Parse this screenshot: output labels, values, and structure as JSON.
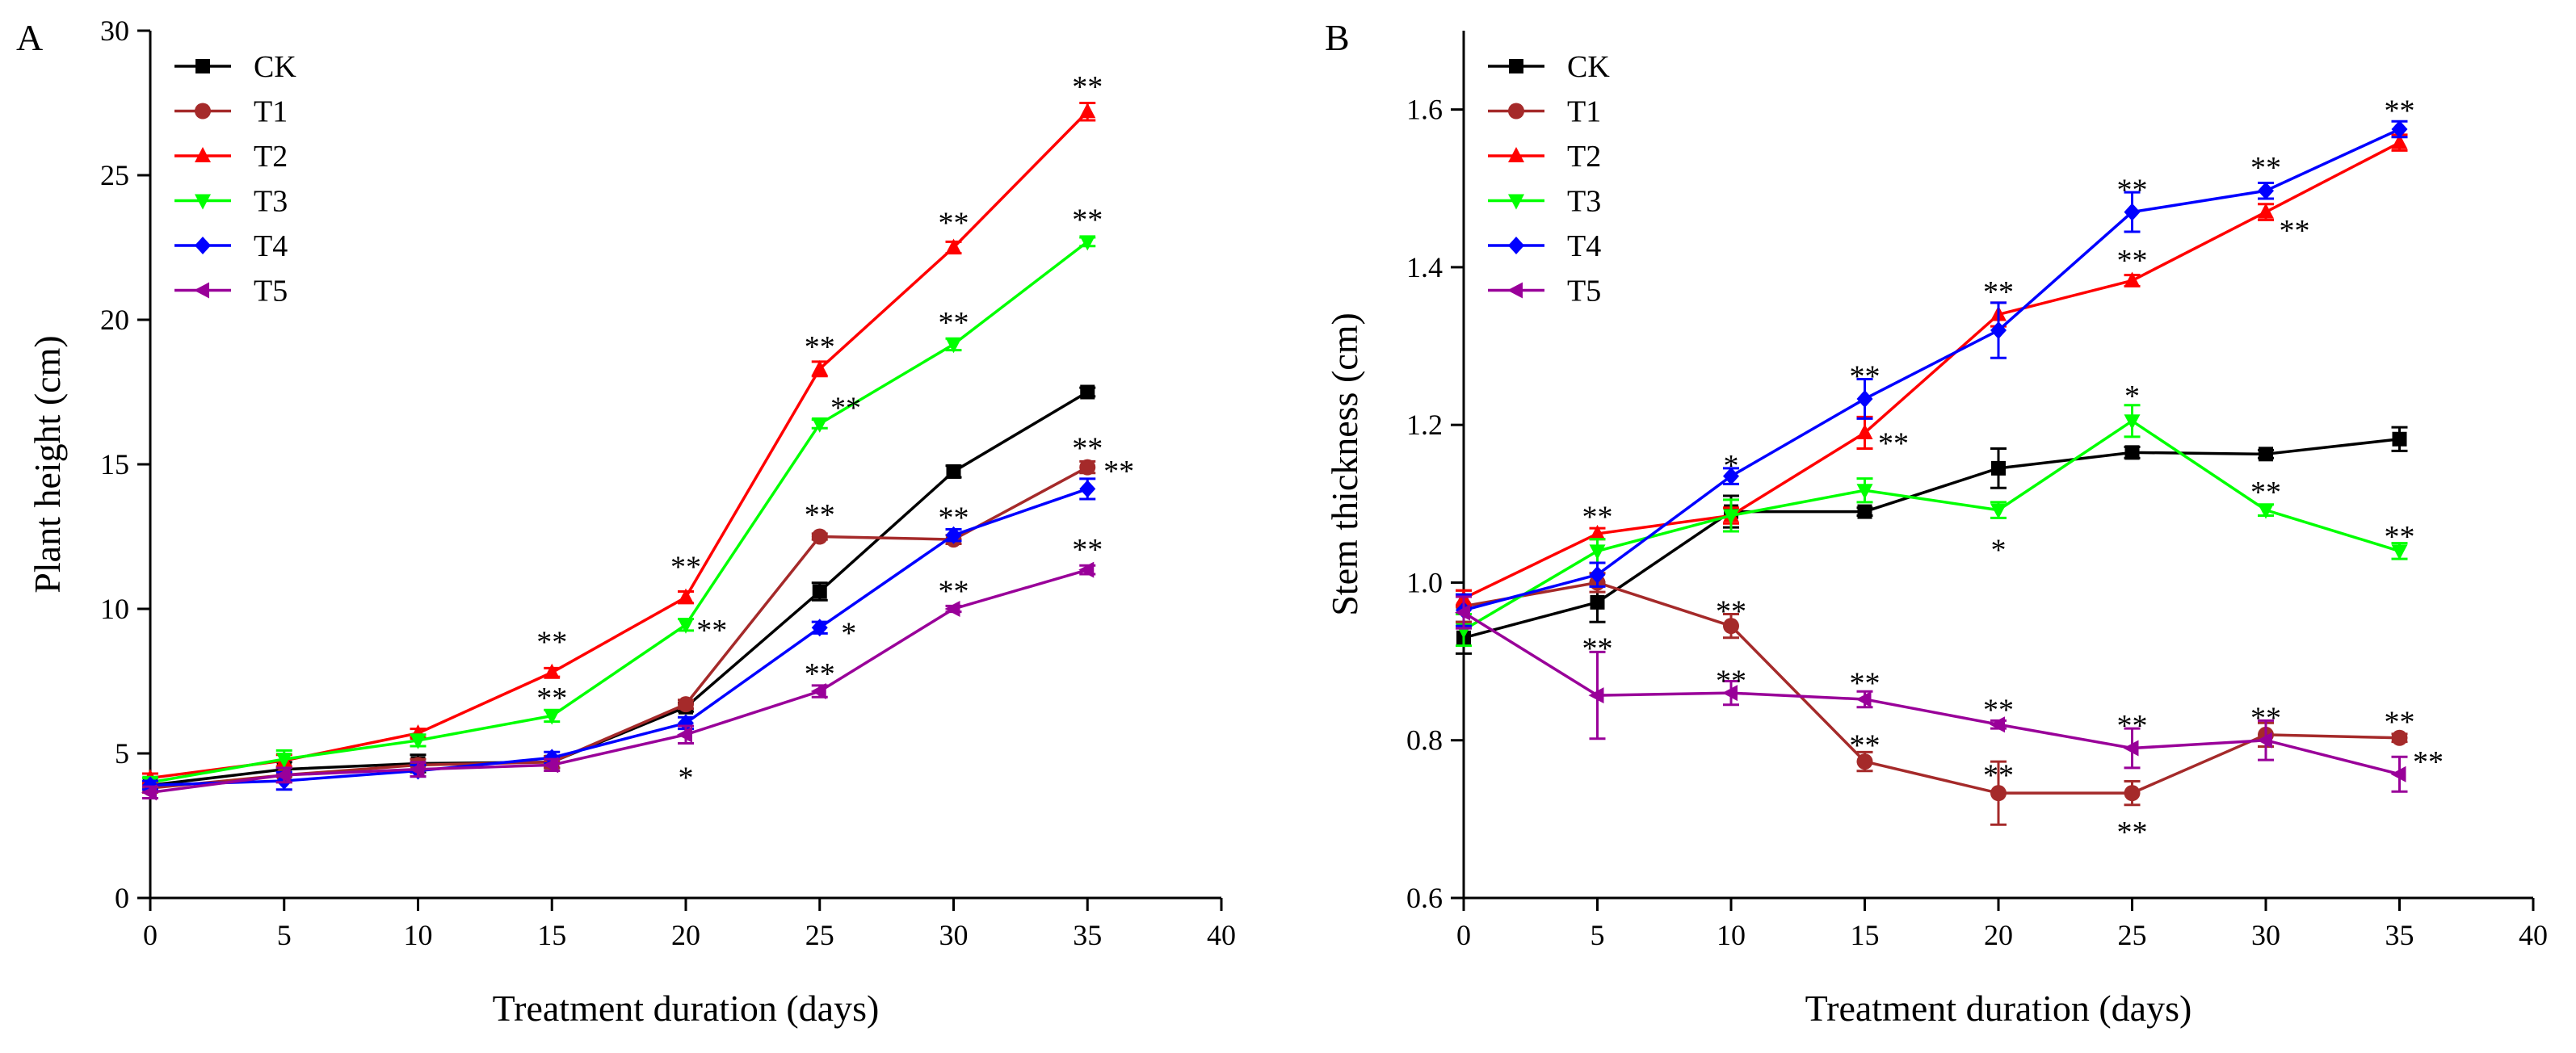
{
  "chart_data": [
    {
      "type": "line",
      "panel_label": "A",
      "xlabel": "Treatment duration (days)",
      "ylabel": "Plant height (cm)",
      "xlim": [
        0,
        40
      ],
      "ylim": [
        0,
        30
      ],
      "xticks": [
        0,
        5,
        10,
        15,
        20,
        25,
        30,
        35,
        40
      ],
      "yticks": [
        0,
        5,
        10,
        15,
        20,
        25,
        30
      ],
      "x": [
        0,
        5,
        10,
        15,
        20,
        25,
        30,
        35
      ],
      "legend_position": "top-left",
      "series": [
        {
          "name": "CK",
          "color": "#000000",
          "marker": "square",
          "values": [
            3.9,
            4.45,
            4.65,
            4.7,
            6.6,
            10.6,
            14.75,
            17.5
          ],
          "errors": [
            0.15,
            0.25,
            0.3,
            0.2,
            0.15,
            0.3,
            0.2,
            0.15
          ]
        },
        {
          "name": "T1",
          "color": "#A52A2A",
          "marker": "circle",
          "values": [
            3.8,
            4.25,
            4.6,
            4.7,
            6.7,
            12.5,
            12.4,
            14.9
          ],
          "errors": [
            0.15,
            0.25,
            0.2,
            0.2,
            0.15,
            0.1,
            0.15,
            0.2
          ]
        },
        {
          "name": "T2",
          "color": "#FF0000",
          "marker": "triangle-up",
          "values": [
            4.15,
            4.75,
            5.7,
            7.8,
            10.4,
            18.3,
            22.5,
            27.2
          ],
          "errors": [
            0.15,
            0.2,
            0.15,
            0.15,
            0.2,
            0.25,
            0.2,
            0.3
          ]
        },
        {
          "name": "T3",
          "color": "#00FF00",
          "marker": "triangle-down",
          "values": [
            4.0,
            4.8,
            5.45,
            6.3,
            9.45,
            16.4,
            19.15,
            22.7
          ],
          "errors": [
            0.15,
            0.3,
            0.2,
            0.2,
            0.2,
            0.15,
            0.2,
            0.15
          ]
        },
        {
          "name": "T4",
          "color": "#0000FF",
          "marker": "diamond",
          "values": [
            3.9,
            4.05,
            4.4,
            4.85,
            6.05,
            9.35,
            12.55,
            14.15
          ],
          "errors": [
            0.15,
            0.3,
            0.2,
            0.2,
            0.2,
            0.2,
            0.2,
            0.35
          ]
        },
        {
          "name": "T5",
          "color": "#990099",
          "marker": "triangle-left",
          "values": [
            3.65,
            4.25,
            4.45,
            4.6,
            5.65,
            7.15,
            10.0,
            11.35
          ],
          "errors": [
            0.2,
            0.25,
            0.25,
            0.2,
            0.3,
            0.2,
            0.1,
            0.15
          ]
        }
      ],
      "annotations": [
        {
          "x": 15,
          "y": 8.9,
          "text": "**",
          "anchor": "middle"
        },
        {
          "x": 15,
          "y": 6.95,
          "text": "**",
          "anchor": "middle"
        },
        {
          "x": 20,
          "y": 11.5,
          "text": "**",
          "anchor": "middle"
        },
        {
          "x": 20.4,
          "y": 9.3,
          "text": "**",
          "anchor": "start"
        },
        {
          "x": 20,
          "y": 4.2,
          "text": "*",
          "anchor": "middle"
        },
        {
          "x": 25,
          "y": 19.1,
          "text": "**",
          "anchor": "middle"
        },
        {
          "x": 25.4,
          "y": 17.0,
          "text": "**",
          "anchor": "start"
        },
        {
          "x": 25,
          "y": 13.3,
          "text": "**",
          "anchor": "middle"
        },
        {
          "x": 25.8,
          "y": 9.2,
          "text": "*",
          "anchor": "start"
        },
        {
          "x": 25,
          "y": 7.8,
          "text": "**",
          "anchor": "middle"
        },
        {
          "x": 30,
          "y": 23.4,
          "text": "**",
          "anchor": "middle"
        },
        {
          "x": 30,
          "y": 19.95,
          "text": "**",
          "anchor": "middle"
        },
        {
          "x": 30,
          "y": 13.2,
          "text": "**",
          "anchor": "middle"
        },
        {
          "x": 30,
          "y": 10.65,
          "text": "**",
          "anchor": "middle"
        },
        {
          "x": 35,
          "y": 28.1,
          "text": "**",
          "anchor": "middle"
        },
        {
          "x": 35,
          "y": 23.5,
          "text": "**",
          "anchor": "middle"
        },
        {
          "x": 35,
          "y": 15.6,
          "text": "**",
          "anchor": "middle"
        },
        {
          "x": 35.6,
          "y": 14.8,
          "text": "**",
          "anchor": "start"
        },
        {
          "x": 35,
          "y": 12.1,
          "text": "**",
          "anchor": "middle"
        }
      ]
    },
    {
      "type": "line",
      "panel_label": "B",
      "xlabel": "Treatment duration (days)",
      "ylabel": "Stem thickness (cm)",
      "xlim": [
        0,
        40
      ],
      "ylim": [
        0.6,
        1.7
      ],
      "xticks": [
        0,
        5,
        10,
        15,
        20,
        25,
        30,
        35,
        40
      ],
      "yticks": [
        0.6,
        0.8,
        1.0,
        1.2,
        1.4,
        1.6
      ],
      "x": [
        0,
        5,
        10,
        15,
        20,
        25,
        30,
        35
      ],
      "legend_position": "top-left",
      "series": [
        {
          "name": "CK",
          "color": "#000000",
          "marker": "square",
          "values": [
            0.93,
            0.975,
            1.09,
            1.09,
            1.145,
            1.165,
            1.163,
            1.182
          ],
          "errors": [
            0.02,
            0.025,
            0.02,
            0.005,
            0.025,
            0.007,
            0.005,
            0.015
          ]
        },
        {
          "name": "T1",
          "color": "#A52A2A",
          "marker": "circle",
          "values": [
            0.97,
            1.0,
            0.945,
            0.773,
            0.733,
            0.733,
            0.807,
            0.803
          ],
          "errors": [
            0.02,
            0.012,
            0.015,
            0.012,
            0.04,
            0.015,
            0.015,
            0.005
          ]
        },
        {
          "name": "T2",
          "color": "#FF0000",
          "marker": "triangle-up",
          "values": [
            0.98,
            1.062,
            1.085,
            1.19,
            1.34,
            1.383,
            1.47,
            1.558
          ],
          "errors": [
            0.01,
            0.007,
            0.01,
            0.02,
            0.015,
            0.007,
            0.01,
            0.01
          ]
        },
        {
          "name": "T3",
          "color": "#00FF00",
          "marker": "triangle-down",
          "values": [
            0.94,
            1.04,
            1.085,
            1.117,
            1.092,
            1.205,
            1.092,
            1.04
          ],
          "errors": [
            0.02,
            0.015,
            0.02,
            0.015,
            0.01,
            0.02,
            0.007,
            0.01
          ]
        },
        {
          "name": "T4",
          "color": "#0000FF",
          "marker": "diamond",
          "values": [
            0.965,
            1.01,
            1.135,
            1.233,
            1.32,
            1.47,
            1.497,
            1.575
          ],
          "errors": [
            0.02,
            0.015,
            0.01,
            0.025,
            0.035,
            0.025,
            0.01,
            0.01
          ]
        },
        {
          "name": "T5",
          "color": "#990099",
          "marker": "triangle-left",
          "values": [
            0.962,
            0.857,
            0.86,
            0.852,
            0.82,
            0.79,
            0.8,
            0.757
          ],
          "errors": [
            0.02,
            0.055,
            0.015,
            0.01,
            0.005,
            0.025,
            0.025,
            0.022
          ]
        }
      ],
      "annotations": [
        {
          "x": 5,
          "y": 1.085,
          "text": "**",
          "anchor": "middle"
        },
        {
          "x": 5,
          "y": 0.918,
          "text": "**",
          "anchor": "middle"
        },
        {
          "x": 10,
          "y": 1.15,
          "text": "*",
          "anchor": "middle"
        },
        {
          "x": 10,
          "y": 0.965,
          "text": "**",
          "anchor": "middle"
        },
        {
          "x": 10,
          "y": 0.877,
          "text": "**",
          "anchor": "middle"
        },
        {
          "x": 15,
          "y": 1.263,
          "text": "**",
          "anchor": "middle"
        },
        {
          "x": 15.5,
          "y": 1.178,
          "text": "**",
          "anchor": "start"
        },
        {
          "x": 15,
          "y": 0.874,
          "text": "**",
          "anchor": "middle"
        },
        {
          "x": 15,
          "y": 0.795,
          "text": "**",
          "anchor": "middle"
        },
        {
          "x": 20,
          "y": 1.37,
          "text": "**",
          "anchor": "middle"
        },
        {
          "x": 20,
          "y": 1.043,
          "text": "*",
          "anchor": "middle"
        },
        {
          "x": 20,
          "y": 0.84,
          "text": "**",
          "anchor": "middle"
        },
        {
          "x": 20,
          "y": 0.757,
          "text": "**",
          "anchor": "middle"
        },
        {
          "x": 25,
          "y": 1.5,
          "text": "**",
          "anchor": "middle"
        },
        {
          "x": 25,
          "y": 1.41,
          "text": "**",
          "anchor": "middle"
        },
        {
          "x": 25,
          "y": 1.238,
          "text": "*",
          "anchor": "middle"
        },
        {
          "x": 25,
          "y": 0.82,
          "text": "**",
          "anchor": "middle"
        },
        {
          "x": 25,
          "y": 0.685,
          "text": "**",
          "anchor": "middle"
        },
        {
          "x": 30,
          "y": 1.528,
          "text": "**",
          "anchor": "middle"
        },
        {
          "x": 30.5,
          "y": 1.448,
          "text": "**",
          "anchor": "start"
        },
        {
          "x": 30,
          "y": 1.116,
          "text": "**",
          "anchor": "middle"
        },
        {
          "x": 30,
          "y": 0.83,
          "text": "**",
          "anchor": "middle"
        },
        {
          "x": 35,
          "y": 1.6,
          "text": "**",
          "anchor": "middle"
        },
        {
          "x": 35,
          "y": 1.06,
          "text": "**",
          "anchor": "middle"
        },
        {
          "x": 35,
          "y": 0.825,
          "text": "**",
          "anchor": "middle"
        },
        {
          "x": 35.5,
          "y": 0.774,
          "text": "**",
          "anchor": "start"
        }
      ]
    }
  ]
}
